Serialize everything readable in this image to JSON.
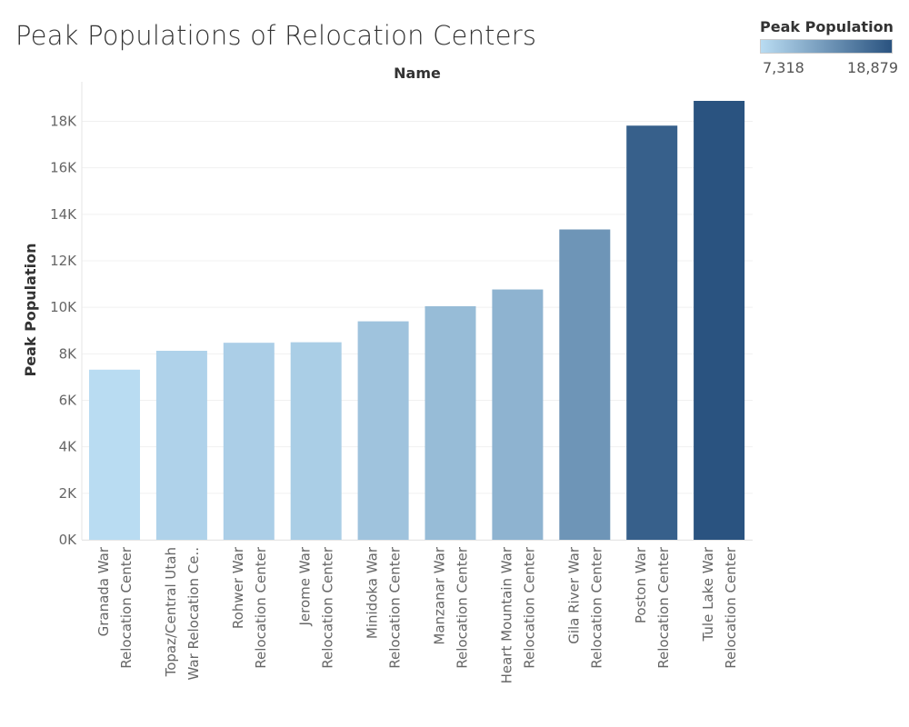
{
  "chart_data": {
    "type": "bar",
    "title": "Peak Populations of Relocation Centers",
    "column_header": "Name",
    "ylabel": "Peak Population",
    "ylim": [
      0,
      19700
    ],
    "yticks": [
      0,
      2000,
      4000,
      6000,
      8000,
      10000,
      12000,
      14000,
      16000,
      18000
    ],
    "ytick_labels": [
      "0K",
      "2K",
      "4K",
      "6K",
      "8K",
      "10K",
      "12K",
      "14K",
      "16K",
      "18K"
    ],
    "categories": [
      [
        "Granada War",
        "Relocation Center"
      ],
      [
        "Topaz/Central Utah",
        "War Relocation Ce.."
      ],
      [
        "Rohwer War",
        "Relocation Center"
      ],
      [
        "Jerome War",
        "Relocation Center"
      ],
      [
        "Minidoka War",
        "Relocation Center"
      ],
      [
        "Manzanar War",
        "Relocation Center"
      ],
      [
        "Heart Mountain War",
        "Relocation Center"
      ],
      [
        "Gila River War",
        "Relocation Center"
      ],
      [
        "Poston War",
        "Relocation Center"
      ],
      [
        "Tule Lake War",
        "Relocation Center"
      ]
    ],
    "values": [
      7318,
      8130,
      8475,
      8497,
      9397,
      10046,
      10767,
      13348,
      17814,
      18879
    ],
    "legend": {
      "title": "Peak Population",
      "min_label": "7,318",
      "max_label": "18,879",
      "min_value": 7318,
      "max_value": 18879,
      "color_low": "#b9dcf2",
      "color_high": "#2a5380",
      "placement": "top-right"
    },
    "grid": true,
    "gridline_color": "#f0f0f0"
  }
}
